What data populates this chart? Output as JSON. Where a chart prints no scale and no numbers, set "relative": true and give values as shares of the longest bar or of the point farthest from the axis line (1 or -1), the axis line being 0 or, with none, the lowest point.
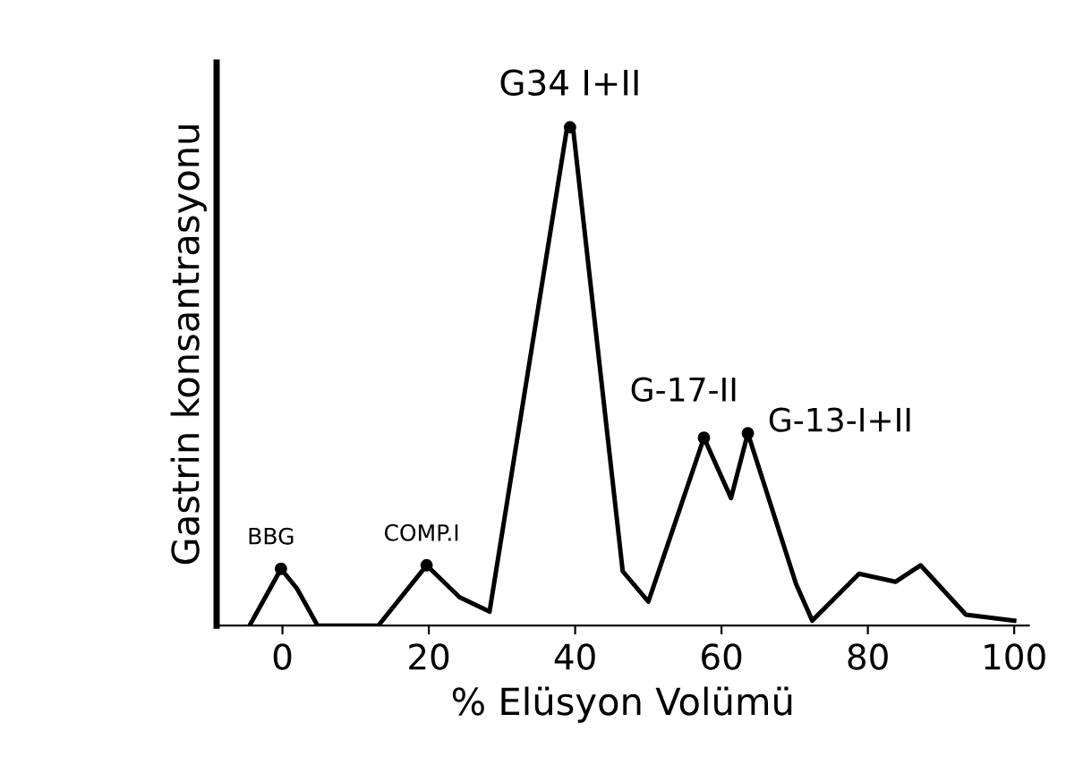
{
  "chart_data": {
    "type": "line",
    "relative": true,
    "xlabel": "% Elüsyon Volümü",
    "ylabel": "Gastrin konsantrasyonu",
    "xlim": [
      -9,
      102
    ],
    "xticks": [
      0,
      20,
      40,
      60,
      80,
      100
    ],
    "grid": false,
    "legend": false,
    "series": [
      {
        "color": "#000000",
        "x": [
          -4.5,
          -1.7,
          -0.2,
          2.0,
          4.8,
          13.1,
          19.7,
          24.2,
          28.3,
          38.9,
          39.7,
          46.5,
          50.0,
          57.6,
          61.3,
          63.6,
          70.2,
          72.4,
          78.8,
          83.8,
          87.2,
          93.4,
          100
        ],
        "values": [
          0,
          0.074,
          0.114,
          0.074,
          0,
          0,
          0.121,
          0.057,
          0.028,
          1.0,
          1.0,
          0.109,
          0.048,
          0.377,
          0.256,
          0.386,
          0.083,
          0.01,
          0.104,
          0.088,
          0.121,
          0.022,
          0.01
        ]
      }
    ],
    "annotations": [
      {
        "text": "BBG",
        "x": -0.2,
        "y": 0.114
      },
      {
        "text": "COMP.I",
        "x": 19.7,
        "y": 0.121
      },
      {
        "text": "G34 I+II",
        "x": 39.3,
        "y": 1.0
      },
      {
        "text": "G-17-II",
        "x": 57.6,
        "y": 0.377
      },
      {
        "text": "G-13-I+II",
        "x": 63.6,
        "y": 0.386
      }
    ]
  }
}
